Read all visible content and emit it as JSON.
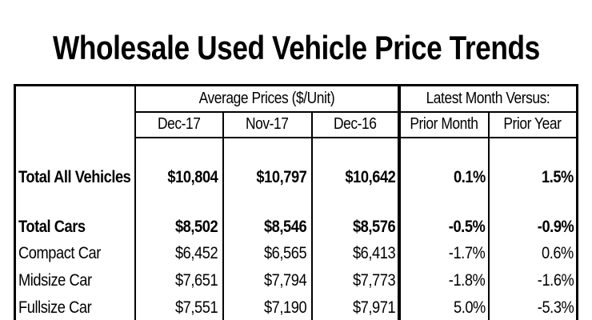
{
  "title": "Wholesale Used Vehicle Price Trends",
  "colors": {
    "text": "#000000",
    "background": "#ffffff",
    "border": "#000000"
  },
  "table": {
    "col_groups": [
      {
        "label": "Average Prices ($/Unit)",
        "span": 3
      },
      {
        "label": "Latest Month Versus:",
        "span": 2
      }
    ],
    "col_headers": [
      "Dec-17",
      "Nov-17",
      "Dec-16",
      "Prior Month",
      "Prior Year"
    ],
    "rows": [
      {
        "label": "Total All Vehicles",
        "emphasis": true,
        "values": [
          "$10,804",
          "$10,797",
          "$10,642",
          "0.1%",
          "1.5%"
        ]
      },
      {
        "label": "Total Cars",
        "emphasis": true,
        "values": [
          "$8,502",
          "$8,546",
          "$8,576",
          "-0.5%",
          "-0.9%"
        ]
      },
      {
        "label": "Compact Car",
        "emphasis": false,
        "values": [
          "$6,452",
          "$6,565",
          "$6,413",
          "-1.7%",
          "0.6%"
        ]
      },
      {
        "label": "Midsize Car",
        "emphasis": false,
        "values": [
          "$7,651",
          "$7,794",
          "$7,773",
          "-1.8%",
          "-1.6%"
        ]
      },
      {
        "label": "Fullsize Car",
        "emphasis": false,
        "values": [
          "$7,551",
          "$7,190",
          "$7,971",
          "5.0%",
          "-5.3%"
        ]
      }
    ]
  },
  "chart_data": {
    "type": "table",
    "title": "Wholesale Used Vehicle Price Trends",
    "columns": [
      "Dec-17",
      "Nov-17",
      "Dec-16",
      "Prior Month",
      "Prior Year"
    ],
    "rows": [
      [
        "Total All Vehicles",
        10804,
        10797,
        10642,
        0.1,
        1.5
      ],
      [
        "Total Cars",
        8502,
        8546,
        8576,
        -0.5,
        -0.9
      ],
      [
        "Compact Car",
        6452,
        6565,
        6413,
        -1.7,
        0.6
      ],
      [
        "Midsize Car",
        7651,
        7794,
        7773,
        -1.8,
        -1.6
      ],
      [
        "Fullsize Car",
        7551,
        7190,
        7971,
        5.0,
        -5.3
      ]
    ],
    "units": {
      "prices": "$/Unit",
      "changes": "%"
    }
  }
}
